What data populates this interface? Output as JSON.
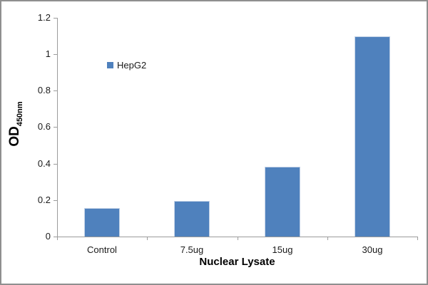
{
  "chart_data": {
    "type": "bar",
    "categories": [
      "Control",
      "7.5ug",
      "15ug",
      "30ug"
    ],
    "series": [
      {
        "name": "HepG2",
        "values": [
          0.155,
          0.197,
          0.385,
          1.1
        ]
      }
    ],
    "title": "",
    "xlabel": "Nuclear Lysate",
    "ylabel": "OD450nm",
    "ylabel_main": "OD",
    "ylabel_sub": "450nm",
    "ylim": [
      0,
      1.2
    ],
    "ytick_step": 0.2,
    "ytick_labels": [
      "0",
      "0.2",
      "0.4",
      "0.6",
      "0.8",
      "1",
      "1.2"
    ],
    "grid": false,
    "legend_position": "inside-upper-left",
    "colors": {
      "bar_fill": "#4F81BD",
      "bar_edge": "#C3D2E7",
      "axis": "#9C9C9C",
      "text": "#1A1A1A",
      "frame_border": "#8F8F8F",
      "background": "#FFFFFF"
    }
  }
}
